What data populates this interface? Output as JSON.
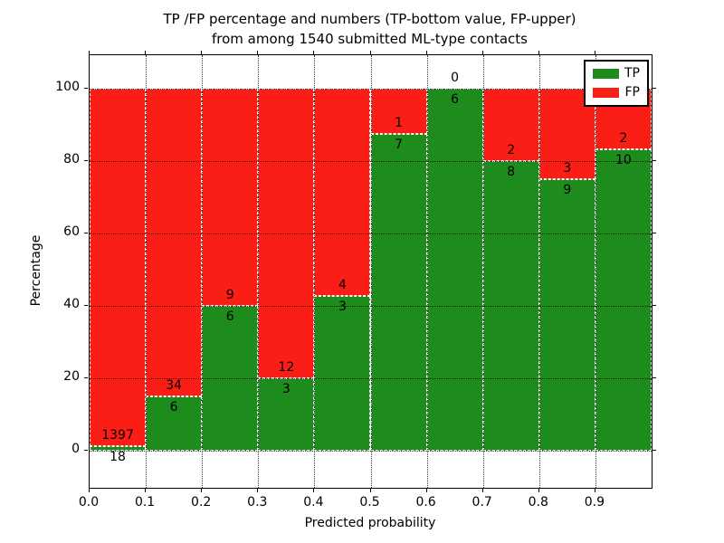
{
  "figure": {
    "title_line1": "TP /FP percentage and numbers (TP-bottom value, FP-upper)",
    "title_line2": "from among 1540 submitted ML-type contacts",
    "background": "#ffffff"
  },
  "chart_data": {
    "type": "bar",
    "stacked": true,
    "normalized_to_percent": true,
    "title": "TP /FP percentage and numbers (TP-bottom value, FP-upper) from among 1540 submitted ML-type contacts",
    "xlabel": "Predicted probability",
    "ylabel": "Percentage",
    "total_contacts": 1540,
    "bins": [
      0.0,
      0.1,
      0.2,
      0.3,
      0.4,
      0.5,
      0.6,
      0.7,
      0.8,
      0.9
    ],
    "bin_width": 0.1,
    "series": [
      {
        "name": "TP",
        "color": "#1d8c1d",
        "counts": [
          18,
          6,
          6,
          3,
          3,
          7,
          6,
          8,
          9,
          10
        ]
      },
      {
        "name": "FP",
        "color": "#fb1e16",
        "counts": [
          1397,
          34,
          9,
          12,
          4,
          1,
          0,
          2,
          3,
          2
        ]
      }
    ],
    "tp_percentages": [
      1.27,
      15.0,
      40.0,
      20.0,
      42.9,
      87.5,
      100.0,
      80.0,
      75.0,
      83.3
    ],
    "label_rule": "FP count above green/red boundary, TP count below boundary",
    "xlim": [
      0,
      1.0
    ],
    "ylim": [
      -10.25,
      109.25
    ],
    "xticks": [
      "0.0",
      "0.1",
      "0.2",
      "0.3",
      "0.4",
      "0.5",
      "0.6",
      "0.7",
      "0.8",
      "0.9"
    ],
    "yticks": [
      0,
      20,
      40,
      60,
      80,
      100
    ],
    "grid": "dotted black, both axes",
    "bar_edge": "white dashed",
    "legend": {
      "position": "upper right",
      "entries": [
        {
          "label": "TP",
          "color": "#1d8c1d"
        },
        {
          "label": "FP",
          "color": "#fb1e16"
        }
      ]
    }
  }
}
